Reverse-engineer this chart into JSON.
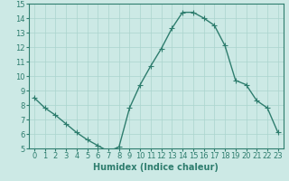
{
  "x": [
    0,
    1,
    2,
    3,
    4,
    5,
    6,
    7,
    8,
    9,
    10,
    11,
    12,
    13,
    14,
    15,
    16,
    17,
    18,
    19,
    20,
    21,
    22,
    23
  ],
  "y": [
    8.5,
    7.8,
    7.3,
    6.7,
    6.1,
    5.6,
    5.2,
    4.8,
    5.1,
    7.8,
    9.4,
    10.7,
    11.9,
    13.3,
    14.4,
    14.4,
    14.0,
    13.5,
    12.1,
    9.7,
    9.4,
    8.3,
    7.8,
    6.1
  ],
  "line_color": "#2e7d6e",
  "marker": "+",
  "marker_size": 4,
  "bg_color": "#cce9e5",
  "grid_color": "#aad4ce",
  "xlabel": "Humidex (Indice chaleur)",
  "ylim": [
    5,
    15
  ],
  "xlim": [
    -0.5,
    23.5
  ],
  "yticks": [
    5,
    6,
    7,
    8,
    9,
    10,
    11,
    12,
    13,
    14,
    15
  ],
  "xticks": [
    0,
    1,
    2,
    3,
    4,
    5,
    6,
    7,
    8,
    9,
    10,
    11,
    12,
    13,
    14,
    15,
    16,
    17,
    18,
    19,
    20,
    21,
    22,
    23
  ],
  "tick_label_fontsize": 6,
  "xlabel_fontsize": 7,
  "line_width": 1.0
}
